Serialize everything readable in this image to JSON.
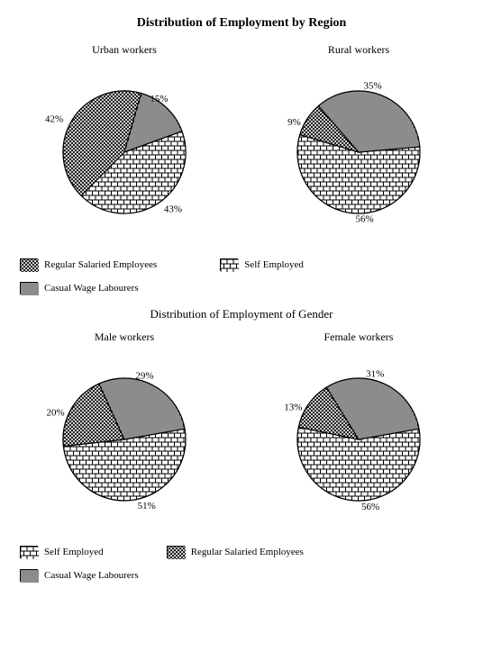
{
  "main_title": "Distribution of Employment by Region",
  "sub_title": "Distribution of Employment of Gender",
  "typography": {
    "title_fontsize": 14,
    "subtitle_fontsize": 13,
    "chart_title_fontsize": 12,
    "label_fontsize": 11,
    "legend_fontsize": 11,
    "font_family": "Palatino Linotype, Book Antiqua, Palatino, Georgia, serif"
  },
  "colors": {
    "background": "#ffffff",
    "stroke": "#000000",
    "text": "#000000",
    "fill_base": "#ffffff"
  },
  "patterns": {
    "self_employed": "brick",
    "regular_salaried": "crosshatch",
    "casual_wage": "vlines"
  },
  "pie_style": {
    "radius": 68,
    "outline_width": 1.2
  },
  "legends_region": [
    {
      "label": "Regular Salaried Employees",
      "pattern": "crosshatch"
    },
    {
      "label": "Self Employed",
      "pattern": "brick"
    },
    {
      "label": "Casual Wage Labourers",
      "pattern": "vlines"
    }
  ],
  "legends_gender": [
    {
      "label": "Self Employed",
      "pattern": "brick"
    },
    {
      "label": "Regular Salaried Employees",
      "pattern": "crosshatch"
    },
    {
      "label": "Casual Wage Labourers",
      "pattern": "vlines"
    }
  ],
  "charts": {
    "urban": {
      "type": "pie",
      "title": "Urban workers",
      "start_angle": 70,
      "slices": [
        {
          "label": "43%",
          "value": 43,
          "pattern": "brick",
          "label_pos": "right"
        },
        {
          "label": "42%",
          "value": 42,
          "pattern": "crosshatch",
          "label_pos": "left"
        },
        {
          "label": "15%",
          "value": 15,
          "pattern": "vlines",
          "label_pos": "topleft"
        }
      ]
    },
    "rural": {
      "type": "pie",
      "title": "Rural workers",
      "start_angle": 85,
      "slices": [
        {
          "label": "56%",
          "value": 56,
          "pattern": "brick",
          "label_pos": "right"
        },
        {
          "label": "9%",
          "value": 9,
          "pattern": "crosshatch",
          "label_pos": "bottomleft"
        },
        {
          "label": "35%",
          "value": 35,
          "pattern": "vlines",
          "label_pos": "topleft"
        }
      ]
    },
    "male": {
      "type": "pie",
      "title": "Male workers",
      "start_angle": 80,
      "slices": [
        {
          "label": "51%",
          "value": 51,
          "pattern": "brick",
          "label_pos": "right"
        },
        {
          "label": "20%",
          "value": 20,
          "pattern": "crosshatch",
          "label_pos": "bottomleft"
        },
        {
          "label": "29%",
          "value": 29,
          "pattern": "vlines",
          "label_pos": "topleft"
        }
      ]
    },
    "female": {
      "type": "pie",
      "title": "Female workers",
      "start_angle": 80,
      "slices": [
        {
          "label": "56%",
          "value": 56,
          "pattern": "brick",
          "label_pos": "right"
        },
        {
          "label": "13%",
          "value": 13,
          "pattern": "crosshatch",
          "label_pos": "bottomleft"
        },
        {
          "label": "31%",
          "value": 31,
          "pattern": "vlines",
          "label_pos": "topleft"
        }
      ]
    }
  }
}
